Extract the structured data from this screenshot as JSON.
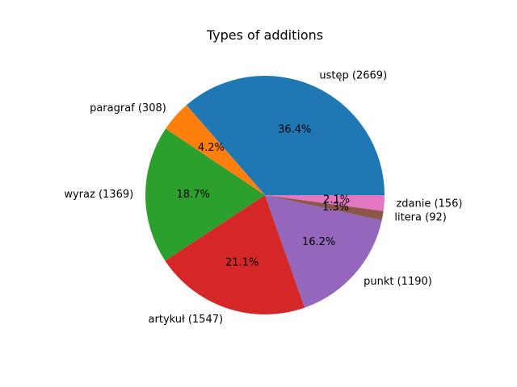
{
  "chart_data": {
    "type": "pie",
    "title": "Types of additions",
    "start_angle_deg": 0,
    "direction": "counterclockwise",
    "slices": [
      {
        "label": "ustęp (2669)",
        "value": 2669,
        "percent": "36.4%",
        "color": "#1f77b4"
      },
      {
        "label": "paragraf (308)",
        "value": 308,
        "percent": "4.2%",
        "color": "#ff7f0e"
      },
      {
        "label": "wyraz (1369)",
        "value": 1369,
        "percent": "18.7%",
        "color": "#2ca02c"
      },
      {
        "label": "artykuł (1547)",
        "value": 1547,
        "percent": "21.1%",
        "color": "#d62728"
      },
      {
        "label": "punkt (1190)",
        "value": 1190,
        "percent": "16.2%",
        "color": "#9467bd"
      },
      {
        "label": "litera (92)",
        "value": 92,
        "percent": "1.3%",
        "color": "#8c564b"
      },
      {
        "label": "zdanie (156)",
        "value": 156,
        "percent": "2.1%",
        "color": "#e377c2"
      }
    ]
  }
}
